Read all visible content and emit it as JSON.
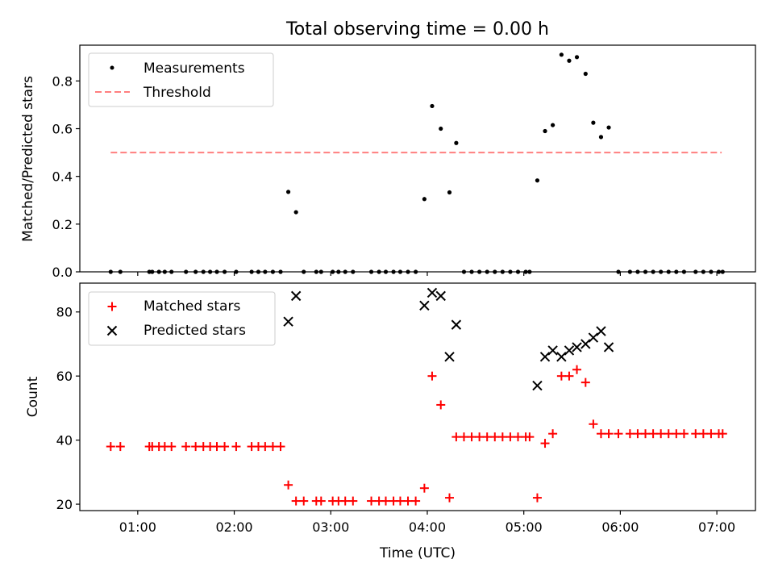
{
  "chart_data": [
    {
      "type": "scatter",
      "title": "Total observing time = 0.00 h",
      "xlabel": "",
      "ylabel": "Matched/Predicted stars",
      "xlim": [
        0.4,
        7.4
      ],
      "ylim": [
        0.0,
        0.95
      ],
      "yticks": [
        0.0,
        0.2,
        0.4,
        0.6,
        0.8
      ],
      "ytick_labels": [
        "0.0",
        "0.2",
        "0.4",
        "0.6",
        "0.8"
      ],
      "legend_position": "top-left",
      "grid": false,
      "threshold": {
        "name": "Threshold",
        "value": 0.5,
        "x_range": [
          0.72,
          7.05
        ],
        "color": "#ff7f7f"
      },
      "series": [
        {
          "name": "Measurements",
          "marker": "dot",
          "color": "#000000",
          "points": [
            [
              0.72,
              0
            ],
            [
              0.82,
              0
            ],
            [
              1.12,
              0
            ],
            [
              1.15,
              0
            ],
            [
              1.22,
              0
            ],
            [
              1.28,
              0
            ],
            [
              1.35,
              0
            ],
            [
              1.5,
              0
            ],
            [
              1.6,
              0
            ],
            [
              1.68,
              0
            ],
            [
              1.75,
              0
            ],
            [
              1.82,
              0
            ],
            [
              1.9,
              0
            ],
            [
              2.02,
              0
            ],
            [
              2.18,
              0
            ],
            [
              2.25,
              0
            ],
            [
              2.32,
              0
            ],
            [
              2.4,
              0
            ],
            [
              2.48,
              0
            ],
            [
              2.56,
              0.335
            ],
            [
              2.64,
              0.25
            ],
            [
              2.72,
              0
            ],
            [
              2.85,
              0
            ],
            [
              2.9,
              0
            ],
            [
              3.02,
              0
            ],
            [
              3.08,
              0
            ],
            [
              3.15,
              0
            ],
            [
              3.23,
              0
            ],
            [
              3.42,
              0
            ],
            [
              3.5,
              0
            ],
            [
              3.57,
              0
            ],
            [
              3.65,
              0
            ],
            [
              3.72,
              0
            ],
            [
              3.8,
              0
            ],
            [
              3.88,
              0
            ],
            [
              3.97,
              0.305
            ],
            [
              4.05,
              0.695
            ],
            [
              4.14,
              0.6
            ],
            [
              4.23,
              0.333
            ],
            [
              4.3,
              0.54
            ],
            [
              4.38,
              0
            ],
            [
              4.46,
              0
            ],
            [
              4.54,
              0
            ],
            [
              4.62,
              0
            ],
            [
              4.7,
              0
            ],
            [
              4.78,
              0
            ],
            [
              4.86,
              0
            ],
            [
              4.94,
              0
            ],
            [
              5.02,
              0
            ],
            [
              5.06,
              0
            ],
            [
              5.14,
              0.383
            ],
            [
              5.22,
              0.59
            ],
            [
              5.3,
              0.615
            ],
            [
              5.39,
              0.91
            ],
            [
              5.47,
              0.885
            ],
            [
              5.55,
              0.9
            ],
            [
              5.64,
              0.83
            ],
            [
              5.72,
              0.625
            ],
            [
              5.8,
              0.565
            ],
            [
              5.88,
              0.605
            ],
            [
              5.98,
              0
            ],
            [
              6.1,
              0
            ],
            [
              6.18,
              0
            ],
            [
              6.26,
              0
            ],
            [
              6.34,
              0
            ],
            [
              6.42,
              0
            ],
            [
              6.5,
              0
            ],
            [
              6.58,
              0
            ],
            [
              6.66,
              0
            ],
            [
              6.78,
              0
            ],
            [
              6.86,
              0
            ],
            [
              6.94,
              0
            ],
            [
              7.02,
              0
            ],
            [
              7.06,
              0
            ]
          ]
        }
      ]
    },
    {
      "type": "scatter",
      "title": "",
      "xlabel": "Time (UTC)",
      "ylabel": "Count",
      "xlim": [
        0.4,
        7.4
      ],
      "ylim": [
        18,
        89
      ],
      "yticks": [
        20,
        40,
        60,
        80
      ],
      "ytick_labels": [
        "20",
        "40",
        "60",
        "80"
      ],
      "xticks": [
        1,
        2,
        3,
        4,
        5,
        6,
        7
      ],
      "xtick_labels": [
        "01:00",
        "02:00",
        "03:00",
        "04:00",
        "05:00",
        "06:00",
        "07:00"
      ],
      "legend_position": "top-left",
      "grid": false,
      "series": [
        {
          "name": "Matched stars",
          "marker": "plus",
          "color": "#ff0000",
          "points": [
            [
              0.72,
              38
            ],
            [
              0.82,
              38
            ],
            [
              1.12,
              38
            ],
            [
              1.15,
              38
            ],
            [
              1.22,
              38
            ],
            [
              1.28,
              38
            ],
            [
              1.35,
              38
            ],
            [
              1.5,
              38
            ],
            [
              1.6,
              38
            ],
            [
              1.68,
              38
            ],
            [
              1.75,
              38
            ],
            [
              1.82,
              38
            ],
            [
              1.9,
              38
            ],
            [
              2.02,
              38
            ],
            [
              2.18,
              38
            ],
            [
              2.25,
              38
            ],
            [
              2.32,
              38
            ],
            [
              2.4,
              38
            ],
            [
              2.48,
              38
            ],
            [
              2.56,
              26
            ],
            [
              2.64,
              21
            ],
            [
              2.72,
              21
            ],
            [
              2.85,
              21
            ],
            [
              2.9,
              21
            ],
            [
              3.02,
              21
            ],
            [
              3.08,
              21
            ],
            [
              3.15,
              21
            ],
            [
              3.23,
              21
            ],
            [
              3.42,
              21
            ],
            [
              3.5,
              21
            ],
            [
              3.57,
              21
            ],
            [
              3.65,
              21
            ],
            [
              3.72,
              21
            ],
            [
              3.8,
              21
            ],
            [
              3.88,
              21
            ],
            [
              3.97,
              25
            ],
            [
              4.05,
              60
            ],
            [
              4.14,
              51
            ],
            [
              4.23,
              22
            ],
            [
              4.3,
              41
            ],
            [
              4.38,
              41
            ],
            [
              4.46,
              41
            ],
            [
              4.54,
              41
            ],
            [
              4.62,
              41
            ],
            [
              4.7,
              41
            ],
            [
              4.78,
              41
            ],
            [
              4.86,
              41
            ],
            [
              4.94,
              41
            ],
            [
              5.02,
              41
            ],
            [
              5.06,
              41
            ],
            [
              5.14,
              22
            ],
            [
              5.22,
              39
            ],
            [
              5.3,
              42
            ],
            [
              5.39,
              60
            ],
            [
              5.47,
              60
            ],
            [
              5.55,
              62
            ],
            [
              5.64,
              58
            ],
            [
              5.72,
              45
            ],
            [
              5.8,
              42
            ],
            [
              5.88,
              42
            ],
            [
              5.98,
              42
            ],
            [
              6.1,
              42
            ],
            [
              6.18,
              42
            ],
            [
              6.26,
              42
            ],
            [
              6.34,
              42
            ],
            [
              6.42,
              42
            ],
            [
              6.5,
              42
            ],
            [
              6.58,
              42
            ],
            [
              6.66,
              42
            ],
            [
              6.78,
              42
            ],
            [
              6.86,
              42
            ],
            [
              6.94,
              42
            ],
            [
              7.02,
              42
            ],
            [
              7.06,
              42
            ]
          ]
        },
        {
          "name": "Predicted stars",
          "marker": "x",
          "color": "#000000",
          "points": [
            [
              2.56,
              77
            ],
            [
              2.64,
              85
            ],
            [
              3.97,
              82
            ],
            [
              4.05,
              86
            ],
            [
              4.14,
              85
            ],
            [
              4.23,
              66
            ],
            [
              4.3,
              76
            ],
            [
              5.14,
              57
            ],
            [
              5.22,
              66
            ],
            [
              5.3,
              68
            ],
            [
              5.39,
              66
            ],
            [
              5.47,
              68
            ],
            [
              5.55,
              69
            ],
            [
              5.64,
              70
            ],
            [
              5.72,
              72
            ],
            [
              5.8,
              74
            ],
            [
              5.88,
              69
            ]
          ]
        }
      ]
    }
  ]
}
